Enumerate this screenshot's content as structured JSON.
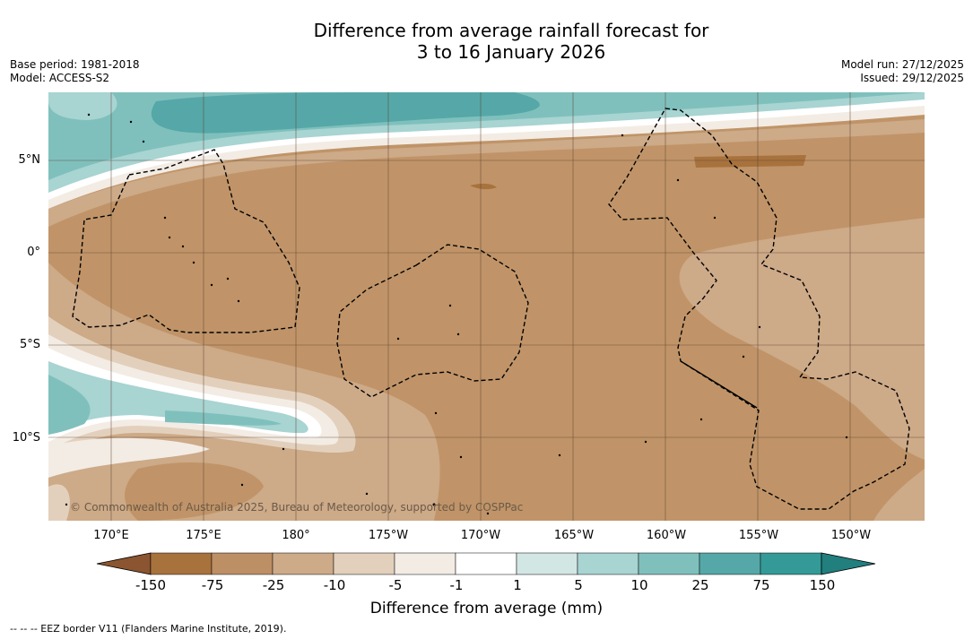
{
  "title": {
    "line1": "Difference from average rainfall forecast for",
    "line2": "3 to 16 January 2026"
  },
  "meta": {
    "base_period": "Base period: 1981-2018",
    "model": "Model: ACCESS-S2",
    "model_run": "Model run: 27/12/2025",
    "issued": "Issued: 29/12/2025"
  },
  "axes": {
    "lat_ticks": [
      "5°N",
      "0°",
      "5°S",
      "10°S"
    ],
    "lon_ticks": [
      "170°E",
      "175°E",
      "180°",
      "175°W",
      "170°W",
      "165°W",
      "160°W",
      "155°W",
      "150°W"
    ]
  },
  "copyright": "© Commonwealth of Australia 2025, Bureau of Meteorology, supported by COSPPac",
  "colorbar": {
    "title": "Difference from average (mm)",
    "labels": [
      "-150",
      "-75",
      "-25",
      "-10",
      "-5",
      "-1",
      "1",
      "5",
      "10",
      "25",
      "75",
      "150"
    ],
    "colors": [
      "#8a5530",
      "#a8723d",
      "#bd8f65",
      "#cdaa88",
      "#e3d0bc",
      "#f3ece4",
      "#ffffff",
      "#d2e6e4",
      "#a8d4d2",
      "#7fc0bd",
      "#55a8a7",
      "#339a97",
      "#217f7d"
    ]
  },
  "legend_note": "--  --  -- EEZ border V11 (Flanders Marine Institute, 2019)."
}
